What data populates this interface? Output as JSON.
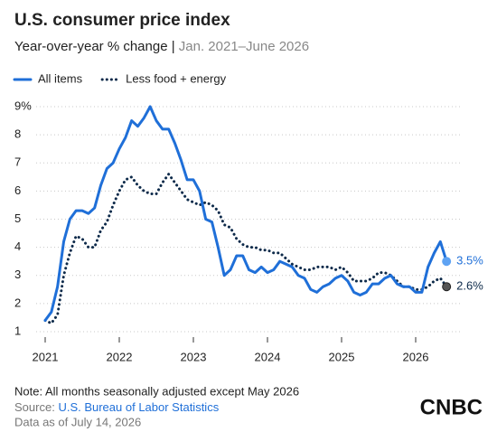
{
  "chart_data": {
    "type": "line",
    "title": "U.S. consumer price index",
    "subtitle": "Year-over-year % change |",
    "subtitle_range": "Jan. 2021–June 2026",
    "categories": [
      "2021",
      null,
      null,
      null,
      null,
      null,
      null,
      null,
      null,
      null,
      null,
      null,
      "2022",
      null,
      null,
      null,
      null,
      null,
      null,
      null,
      null,
      null,
      null,
      null,
      "2023",
      null,
      null,
      null,
      null,
      null,
      null,
      null,
      null,
      null,
      null,
      null,
      "2024",
      null,
      null,
      null,
      null,
      null,
      null,
      null,
      null,
      null,
      null,
      null,
      "2025",
      null,
      null,
      null,
      null,
      null,
      null,
      null,
      null,
      null,
      null,
      null,
      "2026",
      null,
      null,
      null,
      null,
      null
    ],
    "series": [
      {
        "name": "All items",
        "color": "#1f6fd8",
        "dash": false,
        "values": [
          1.4,
          1.7,
          2.6,
          4.2,
          5.0,
          5.3,
          5.3,
          5.2,
          5.4,
          6.2,
          6.8,
          7.0,
          7.5,
          7.9,
          8.5,
          8.3,
          8.6,
          9.0,
          8.5,
          8.2,
          8.2,
          7.7,
          7.1,
          6.4,
          6.4,
          6.0,
          5.0,
          4.9,
          4.0,
          3.0,
          3.2,
          3.7,
          3.7,
          3.2,
          3.1,
          3.3,
          3.1,
          3.2,
          3.5,
          3.4,
          3.3,
          3.0,
          2.9,
          2.5,
          2.4,
          2.6,
          2.7,
          2.9,
          3.0,
          2.8,
          2.4,
          2.3,
          2.4,
          2.7,
          2.7,
          2.9,
          3.0,
          2.7,
          2.6,
          2.6,
          2.4,
          2.4,
          3.3,
          3.8,
          4.2,
          3.5
        ],
        "value_labels": [
          null,
          null,
          null,
          null,
          null,
          null,
          null,
          null,
          null,
          null,
          null,
          null,
          null,
          null,
          null,
          null,
          null,
          null,
          null,
          null,
          null,
          null,
          null,
          null,
          null,
          null,
          null,
          null,
          null,
          null,
          null,
          null,
          null,
          null,
          null,
          null,
          null,
          null,
          null,
          null,
          null,
          null,
          null,
          null,
          null,
          null,
          null,
          null,
          null,
          null,
          null,
          null,
          null,
          null,
          null,
          null,
          null,
          null,
          null,
          null,
          null,
          null,
          null,
          null,
          null,
          "3.5%"
        ]
      },
      {
        "name": "Less food + energy",
        "color": "#0d2a4a",
        "dash": true,
        "values": [
          1.4,
          1.3,
          1.6,
          3.0,
          3.8,
          4.4,
          4.3,
          4.0,
          4.0,
          4.6,
          4.9,
          5.5,
          6.0,
          6.4,
          6.5,
          6.2,
          6.0,
          5.9,
          5.9,
          6.3,
          6.6,
          6.3,
          6.0,
          5.7,
          5.6,
          5.5,
          5.6,
          5.5,
          5.3,
          4.8,
          4.7,
          4.3,
          4.1,
          4.0,
          4.0,
          3.9,
          3.9,
          3.8,
          3.8,
          3.6,
          3.4,
          3.3,
          3.2,
          3.2,
          3.3,
          3.3,
          3.3,
          3.2,
          3.3,
          3.1,
          2.8,
          2.8,
          2.8,
          2.9,
          3.1,
          3.1,
          3.0,
          2.8,
          2.6,
          2.6,
          2.5,
          2.5,
          2.6,
          2.8,
          2.9,
          2.6
        ],
        "value_labels": [
          null,
          null,
          null,
          null,
          null,
          null,
          null,
          null,
          null,
          null,
          null,
          null,
          null,
          null,
          null,
          null,
          null,
          null,
          null,
          null,
          null,
          null,
          null,
          null,
          null,
          null,
          null,
          null,
          null,
          null,
          null,
          null,
          null,
          null,
          null,
          null,
          null,
          null,
          null,
          null,
          null,
          null,
          null,
          null,
          null,
          null,
          null,
          null,
          null,
          null,
          null,
          null,
          null,
          null,
          null,
          null,
          null,
          null,
          null,
          null,
          null,
          null,
          null,
          null,
          null,
          "2.6%"
        ]
      }
    ],
    "ylim": [
      1,
      9
    ],
    "yticks": [
      1,
      2,
      3,
      4,
      5,
      6,
      7,
      8,
      {
        "value": 9,
        "label": "9%"
      }
    ],
    "grid": true,
    "note": "Note: All months seasonally adjusted except May 2026",
    "source_prefix": "Source:",
    "source": "U.S. Bureau of Labor Statistics",
    "data_as_of": "Data as of July 14, 2026",
    "logo": "CNBC"
  }
}
